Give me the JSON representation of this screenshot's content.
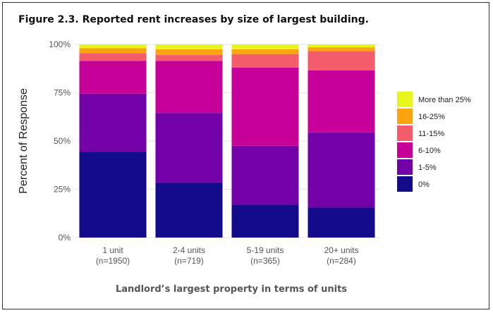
{
  "figure_title": "Figure 2.3. Reported rent increases by size of largest building.",
  "chart_data": {
    "type": "bar",
    "stacked": true,
    "categories": [
      "1 unit\n(n=1950)",
      "2-4 units\n(n=719)",
      "5-19 units\n(n=365)",
      "20+ units\n(n=284)"
    ],
    "xlabel": "Landlord’s largest property in terms of units",
    "ylabel": "Percent of Response",
    "ylim": [
      0,
      100
    ],
    "yticks": [
      "0%",
      "25%",
      "50%",
      "75%",
      "100%"
    ],
    "ytick_values": [
      0,
      25,
      50,
      75,
      100
    ],
    "legend_position": "right",
    "grid": true,
    "series": [
      {
        "name": "0%",
        "color": "#140b8c",
        "values": [
          44.5,
          28.5,
          17,
          15.5
        ]
      },
      {
        "name": "1-5%",
        "color": "#7201a8",
        "values": [
          30,
          36,
          30.5,
          39
        ]
      },
      {
        "name": "6-10%",
        "color": "#c7009a",
        "values": [
          17,
          27,
          40.5,
          32
        ]
      },
      {
        "name": "11-15%",
        "color": "#f45c6c",
        "values": [
          4,
          3,
          7,
          10
        ]
      },
      {
        "name": "16-25%",
        "color": "#fca310",
        "values": [
          2.5,
          3,
          2.5,
          2
        ]
      },
      {
        "name": "More than 25%",
        "color": "#e8f51a",
        "values": [
          2,
          2.5,
          2.5,
          1.5
        ]
      }
    ]
  }
}
